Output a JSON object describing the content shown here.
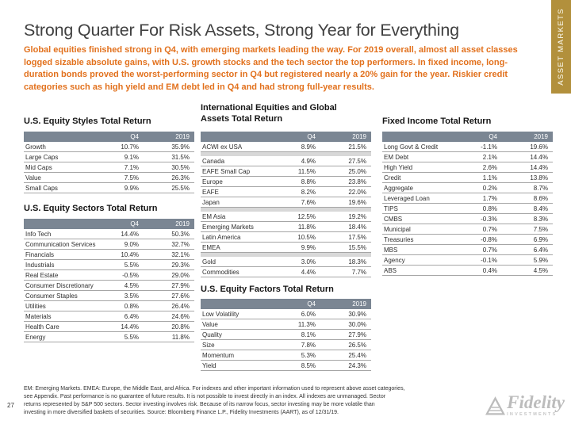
{
  "page": {
    "title": "Strong Quarter For Risk Assets, Strong Year for Everything",
    "lead": "Global equities finished strong in Q4, with emerging markets leading the way. For 2019 overall, almost all asset classes logged sizable absolute gains, with U.S. growth stocks and the tech sector the top performers. In fixed income, long-duration bonds proved the worst-performing sector in Q4 but registered nearly a 20% gain for the year. Riskier credit categories such as high yield and EM debt led in Q4 and had strong full-year results."
  },
  "banner": {
    "label": "ASSET MARKETS"
  },
  "tables": {
    "styles": {
      "heading": "U.S. Equity Styles Total Return",
      "columns": [
        "Q4",
        "2019"
      ],
      "rows": [
        [
          "Growth",
          "10.7%",
          "35.9%"
        ],
        [
          "Large Caps",
          "9.1%",
          "31.5%"
        ],
        [
          "Mid Caps",
          "7.1%",
          "30.5%"
        ],
        [
          "Value",
          "7.5%",
          "26.3%"
        ],
        [
          "Small Caps",
          "9.9%",
          "25.5%"
        ]
      ]
    },
    "sectors": {
      "heading": "U.S. Equity Sectors Total Return",
      "columns": [
        "Q4",
        "2019"
      ],
      "rows": [
        [
          "Info Tech",
          "14.4%",
          "50.3%"
        ],
        [
          "Communication Services",
          "9.0%",
          "32.7%"
        ],
        [
          "Financials",
          "10.4%",
          "32.1%"
        ],
        [
          "Industrials",
          "5.5%",
          "29.3%"
        ],
        [
          "Real Estate",
          "-0.5%",
          "29.0%"
        ],
        [
          "Consumer Discretionary",
          "4.5%",
          "27.9%"
        ],
        [
          "Consumer Staples",
          "3.5%",
          "27.6%"
        ],
        [
          "Utilities",
          "0.8%",
          "26.4%"
        ],
        [
          "Materials",
          "6.4%",
          "24.6%"
        ],
        [
          "Health Care",
          "14.4%",
          "20.8%"
        ],
        [
          "Energy",
          "5.5%",
          "11.8%"
        ]
      ]
    },
    "international": {
      "heading": "International Equities and Global\nAssets Total Return",
      "columns": [
        "Q4",
        "2019"
      ],
      "groups": [
        [
          [
            "ACWI ex USA",
            "8.9%",
            "21.5%"
          ]
        ],
        [
          [
            "Canada",
            "4.9%",
            "27.5%"
          ],
          [
            "EAFE Small Cap",
            "11.5%",
            "25.0%"
          ],
          [
            "Europe",
            "8.8%",
            "23.8%"
          ],
          [
            "EAFE",
            "8.2%",
            "22.0%"
          ],
          [
            "Japan",
            "7.6%",
            "19.6%"
          ]
        ],
        [
          [
            "EM Asia",
            "12.5%",
            "19.2%"
          ],
          [
            "Emerging Markets",
            "11.8%",
            "18.4%"
          ],
          [
            "Latin America",
            "10.5%",
            "17.5%"
          ],
          [
            "EMEA",
            "9.9%",
            "15.5%"
          ]
        ],
        [
          [
            "Gold",
            "3.0%",
            "18.3%"
          ],
          [
            "Commodities",
            "4.4%",
            "7.7%"
          ]
        ]
      ]
    },
    "factors": {
      "heading": "U.S. Equity Factors Total Return",
      "columns": [
        "Q4",
        "2019"
      ],
      "rows": [
        [
          "Low Volatility",
          "6.0%",
          "30.9%"
        ],
        [
          "Value",
          "11.3%",
          "30.0%"
        ],
        [
          "Quality",
          "8.1%",
          "27.9%"
        ],
        [
          "Size",
          "7.8%",
          "26.5%"
        ],
        [
          "Momentum",
          "5.3%",
          "25.4%"
        ],
        [
          "Yield",
          "8.5%",
          "24.3%"
        ]
      ]
    },
    "fixed_income": {
      "heading": "Fixed Income Total Return",
      "columns": [
        "Q4",
        "2019"
      ],
      "rows": [
        [
          "Long Govt & Credit",
          "-1.1%",
          "19.6%"
        ],
        [
          "EM Debt",
          "2.1%",
          "14.4%"
        ],
        [
          "High Yield",
          "2.6%",
          "14.4%"
        ],
        [
          "Credit",
          "1.1%",
          "13.8%"
        ],
        [
          "Aggregate",
          "0.2%",
          "8.7%"
        ],
        [
          "Leveraged Loan",
          "1.7%",
          "8.6%"
        ],
        [
          "TIPS",
          "0.8%",
          "8.4%"
        ],
        [
          "CMBS",
          "-0.3%",
          "8.3%"
        ],
        [
          "Municipal",
          "0.7%",
          "7.5%"
        ],
        [
          "Treasuries",
          "-0.8%",
          "6.9%"
        ],
        [
          "MBS",
          "0.7%",
          "6.4%"
        ],
        [
          "Agency",
          "-0.1%",
          "5.9%"
        ],
        [
          "ABS",
          "0.4%",
          "4.5%"
        ]
      ]
    }
  },
  "footer": {
    "page_number": "27",
    "text": "EM: Emerging Markets. EMEA: Europe, the Middle East, and Africa. For indexes and other important information used to represent above asset categories,\nsee Appendix. Past performance is no guarantee of future results. It is not possible to invest directly in an index. All indexes are unmanaged. Sector\nreturns represented by S&P 500 sectors. Sector investing involves risk. Because of its narrow focus, sector investing may be more volatile than\ninvesting in more diversified baskets of securities. Source: Bloomberg Finance L.P., Fidelity Investments (AART), as of 12/31/19."
  },
  "logo": {
    "brand": "Fidelity",
    "sub": "INVESTMENTS"
  },
  "colors": {
    "accent_orange": "#E2711D",
    "banner_gold": "#B2903C",
    "table_header_bg": "#7B8693"
  }
}
